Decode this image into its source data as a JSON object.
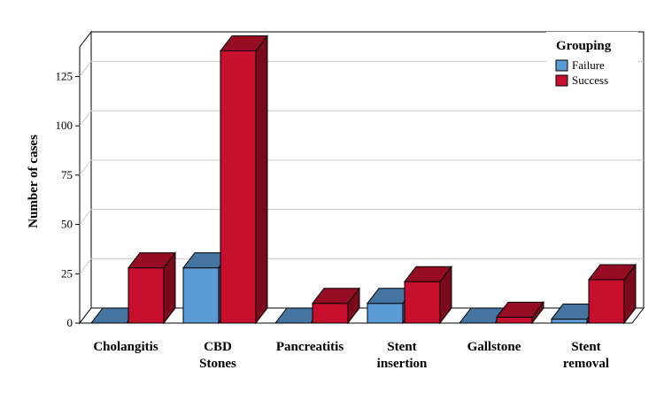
{
  "chart_data": {
    "type": "bar",
    "categories": [
      "Cholangitis",
      "CBD Stones",
      "Pancreatitis",
      "Stent insertion",
      "Gallstone",
      "Stent removal"
    ],
    "category_lines": [
      [
        "Cholangitis"
      ],
      [
        "CBD",
        "Stones"
      ],
      [
        "Pancreatitis"
      ],
      [
        "Stent",
        "insertion"
      ],
      [
        "Gallstone"
      ],
      [
        "Stent",
        "removal"
      ]
    ],
    "series": [
      {
        "name": "Failure",
        "values": [
          0,
          28,
          0,
          10,
          0,
          2
        ],
        "color": "#5b9bd5"
      },
      {
        "name": "Success",
        "values": [
          28,
          138,
          10,
          21,
          3,
          22
        ],
        "color": "#c8102e"
      }
    ],
    "ylabel": "Number of cases",
    "ylim": [
      0,
      140
    ],
    "yticks": [
      0,
      25,
      50,
      75,
      100,
      125
    ],
    "legend": {
      "title": "Grouping",
      "position": "top-right"
    },
    "grid": true,
    "three_d": true
  }
}
